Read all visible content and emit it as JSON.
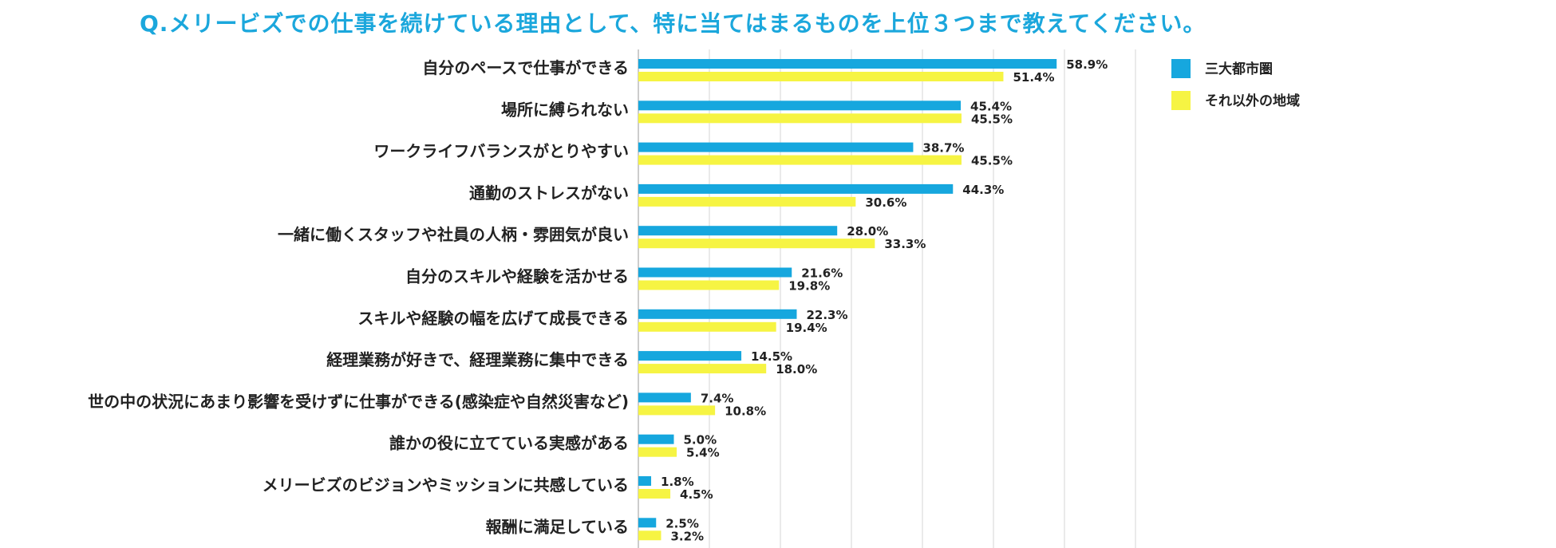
{
  "colors": {
    "series1": "#16a7de",
    "series2": "#f6f443",
    "title": "#1ba7dc",
    "grid": "#d6d6d6",
    "text": "#222222"
  },
  "chart_data": {
    "type": "bar",
    "orientation": "horizontal",
    "title": "Q.メリービズでの仕事を続けている理由として、特に当てはまるものを上位３つまで教えてください。",
    "categories": [
      "自分のペースで仕事ができる",
      "場所に縛られない",
      "ワークライフバランスがとりやすい",
      "通勤のストレスがない",
      "一緒に働くスタッフや社員の人柄・雰囲気が良い",
      "自分のスキルや経験を活かせる",
      "スキルや経験の幅を広げて成長できる",
      "経理業務が好きで、経理業務に集中できる",
      "世の中の状況にあまり影響を受けずに仕事ができる(感染症や自然災害など)",
      "誰かの役に立てている実感がある",
      "メリービズのビジョンやミッションに共感している",
      "報酬に満足している"
    ],
    "series": [
      {
        "name": "三大都市圏",
        "values": [
          58.9,
          45.4,
          38.7,
          44.3,
          28.0,
          21.6,
          22.3,
          14.5,
          7.4,
          5.0,
          1.8,
          2.5
        ]
      },
      {
        "name": "それ以外の地域",
        "values": [
          51.4,
          45.5,
          45.5,
          30.6,
          33.3,
          19.8,
          19.4,
          18.0,
          10.8,
          5.4,
          4.5,
          3.2
        ]
      }
    ],
    "value_suffix": "%",
    "xlim": [
      0,
      70
    ],
    "gridlines": true,
    "legend_position": "top-right"
  }
}
